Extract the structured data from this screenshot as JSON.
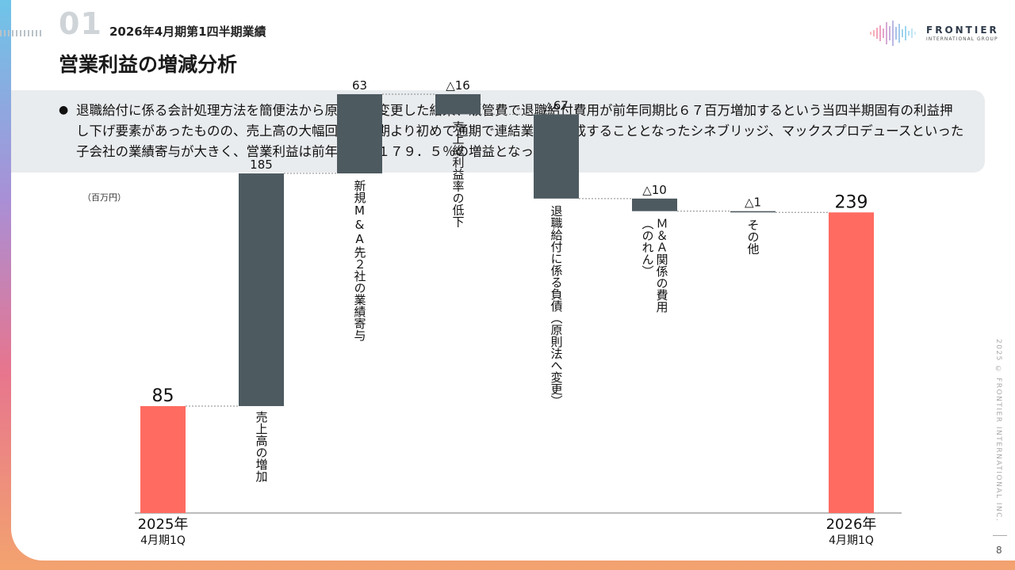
{
  "header": {
    "section_number": "01",
    "subtitle": "2026年4月期第1四半期業績",
    "title": "営業利益の増減分析"
  },
  "logo": {
    "name": "FRONTIER",
    "sub": "INTERNATIONAL GROUP"
  },
  "note": {
    "bullet": "●",
    "text": "退職給付に係る会計処理方法を簡便法から原則法に変更した結果、販管費で退職給付費用が前年同期比６７百万増加するという当四半期固有の利益押し下げ要素があったものの、売上高の大幅回復や今期より初めて通期で連結業績を構成することとなったシネブリッジ、マックスプロデュースといった子会社の業績寄与が大きく、営業利益は前年同期比１７９．５％の増益となった。"
  },
  "footer": {
    "copyright": "2025 © FRONTIER INTERNATIONAL INC.",
    "page": "8"
  },
  "colors": {
    "total": "#ff6b61",
    "step": "#4d5a60",
    "axis": "#777777"
  },
  "chart_data": {
    "type": "waterfall",
    "unit": "（百万円）",
    "ylim": [
      0,
      260
    ],
    "steps": [
      {
        "label": "2025年\n4月期1Q",
        "value": 85,
        "display": "85",
        "kind": "total"
      },
      {
        "label": "売上高の増加",
        "value": 185,
        "display": "185",
        "kind": "delta"
      },
      {
        "label": "新規M&A先２社の業績寄与",
        "value": 63,
        "display": "63",
        "kind": "delta"
      },
      {
        "label": "売上総利益率の低下",
        "value": -16,
        "display": "△16",
        "kind": "delta"
      },
      {
        "label": "退職給付に係る負債（原則法へ変更）",
        "value": -67,
        "display": "△67",
        "kind": "delta"
      },
      {
        "label": "Ｍ＆Ａ関係の費用\n（のれん）",
        "value": -10,
        "display": "△10",
        "kind": "delta"
      },
      {
        "label": "その他",
        "value": -1,
        "display": "△1",
        "kind": "delta"
      },
      {
        "label": "2026年\n4月期1Q",
        "value": 239,
        "display": "239",
        "kind": "total"
      }
    ]
  }
}
